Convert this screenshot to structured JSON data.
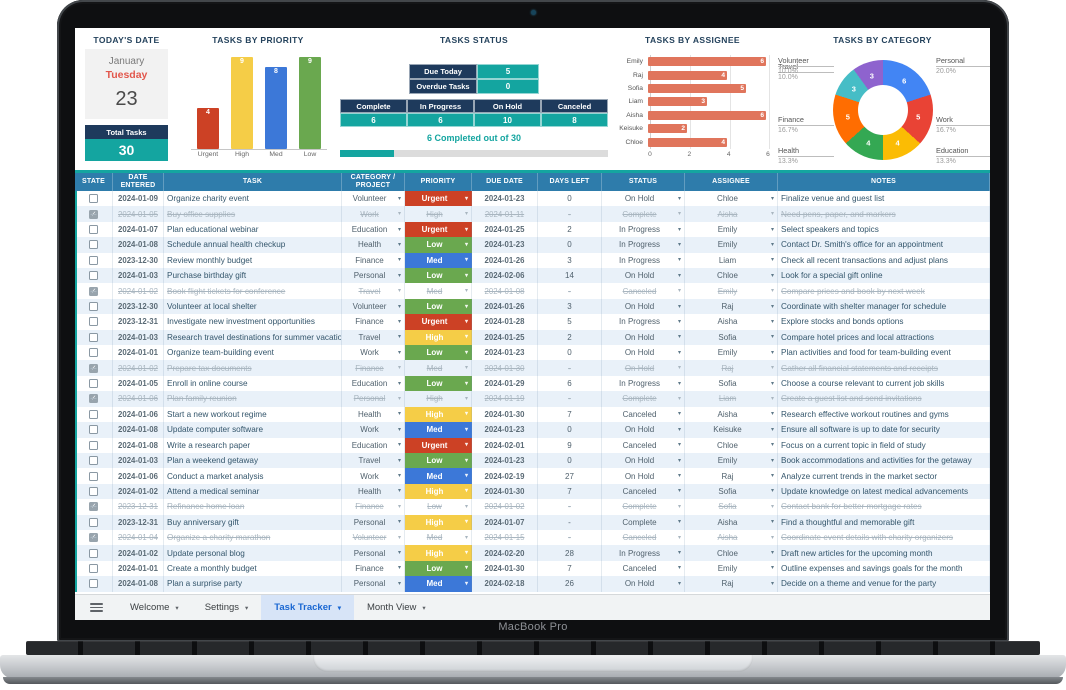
{
  "device": {
    "label": "MacBook Pro"
  },
  "dashboard": {
    "today": {
      "title": "TODAY'S DATE",
      "month": "January",
      "weekday": "Tuesday",
      "day": "23"
    },
    "total_tasks": {
      "label": "Total Tasks",
      "value": "30"
    },
    "status": {
      "title": "TASKS STATUS",
      "due_today": {
        "label": "Due Today",
        "value": "5"
      },
      "overdue": {
        "label": "Overdue Tasks",
        "value": "0"
      },
      "summary": [
        {
          "label": "Complete",
          "value": "6"
        },
        {
          "label": "In Progress",
          "value": "6"
        },
        {
          "label": "On Hold",
          "value": "10"
        },
        {
          "label": "Canceled",
          "value": "8"
        }
      ],
      "progress_text": "6 Completed out of 30",
      "progress_pct": 20
    }
  },
  "chart_data": [
    {
      "type": "bar",
      "title": "TASKS BY PRIORITY",
      "categories": [
        "Urgent",
        "High",
        "Med",
        "Low"
      ],
      "values": [
        4,
        9,
        8,
        9
      ],
      "colors": [
        "#cc4125",
        "#f5cd47",
        "#3c78d8",
        "#6aa84f"
      ],
      "xlabel": "",
      "ylabel": "",
      "ylim": [
        0,
        9
      ],
      "grid": false
    },
    {
      "type": "bar",
      "orientation": "horizontal",
      "title": "TASKS BY ASSIGNEE",
      "categories": [
        "Emily",
        "Raj",
        "Sofia",
        "Liam",
        "Aisha",
        "Keisuke",
        "Chloe"
      ],
      "values": [
        6,
        4,
        5,
        3,
        6,
        2,
        4
      ],
      "color": "#e0755c",
      "xticks": [
        0,
        2,
        4,
        6
      ],
      "xlim": [
        0,
        6
      ],
      "grid": true
    },
    {
      "type": "pie",
      "donut": true,
      "title": "TASKS BY CATEGORY",
      "labels": [
        "Personal",
        "Work",
        "Education",
        "Health",
        "Finance",
        "Travel",
        "Volunteer"
      ],
      "values": [
        6,
        5,
        4,
        4,
        5,
        3,
        3
      ],
      "percents": [
        "20.0%",
        "16.7%",
        "13.3%",
        "13.3%",
        "16.7%",
        "10.0%",
        "10.0%"
      ],
      "colors": [
        "#4285f4",
        "#e94335",
        "#fbbc04",
        "#34a853",
        "#ff6d01",
        "#46bdc6",
        "#8e63ce"
      ],
      "sides": [
        "right",
        "right",
        "right",
        "left",
        "left",
        "left",
        "left"
      ],
      "legend_position": "outside-callouts"
    }
  ],
  "table": {
    "columns": [
      "STATE",
      "DATE ENTERED",
      "TASK",
      "CATEGORY / PROJECT",
      "PRIORITY",
      "DUE DATE",
      "DAYS LEFT",
      "STATUS",
      "ASSIGNEE",
      "NOTES"
    ],
    "rows": [
      {
        "checked": false,
        "done": false,
        "date": "2024-01-09",
        "task": "Organize charity event",
        "category": "Volunteer",
        "priority": "Urgent",
        "due": "2024-01-23",
        "days": "0",
        "status": "On Hold",
        "assignee": "Chloe",
        "notes": "Finalize venue and guest list"
      },
      {
        "checked": true,
        "done": true,
        "date": "2024-01-05",
        "task": "Buy office supplies",
        "category": "Work",
        "priority": "High",
        "due": "2024-01-11",
        "days": "-",
        "status": "Complete",
        "assignee": "Aisha",
        "notes": "Need pens, paper, and markers"
      },
      {
        "checked": false,
        "done": false,
        "date": "2024-01-07",
        "task": "Plan educational webinar",
        "category": "Education",
        "priority": "Urgent",
        "due": "2024-01-25",
        "days": "2",
        "status": "In Progress",
        "assignee": "Emily",
        "notes": "Select speakers and topics"
      },
      {
        "checked": false,
        "done": false,
        "date": "2024-01-08",
        "task": "Schedule annual health checkup",
        "category": "Health",
        "priority": "Low",
        "due": "2024-01-23",
        "days": "0",
        "status": "In Progress",
        "assignee": "Emily",
        "notes": "Contact Dr. Smith's office for an appointment"
      },
      {
        "checked": false,
        "done": false,
        "date": "2023-12-30",
        "task": "Review monthly budget",
        "category": "Finance",
        "priority": "Med",
        "due": "2024-01-26",
        "days": "3",
        "status": "In Progress",
        "assignee": "Liam",
        "notes": "Check all recent transactions and adjust plans"
      },
      {
        "checked": false,
        "done": false,
        "date": "2024-01-03",
        "task": "Purchase birthday gift",
        "category": "Personal",
        "priority": "Low",
        "due": "2024-02-06",
        "days": "14",
        "status": "On Hold",
        "assignee": "Chloe",
        "notes": "Look for a special gift online"
      },
      {
        "checked": true,
        "done": true,
        "date": "2024-01-02",
        "task": "Book flight tickets for conference",
        "category": "Travel",
        "priority": "Med",
        "due": "2024-01-08",
        "days": "-",
        "status": "Canceled",
        "assignee": "Emily",
        "notes": "Compare prices and book by next week"
      },
      {
        "checked": false,
        "done": false,
        "date": "2023-12-30",
        "task": "Volunteer at local shelter",
        "category": "Volunteer",
        "priority": "Low",
        "due": "2024-01-26",
        "days": "3",
        "status": "On Hold",
        "assignee": "Raj",
        "notes": "Coordinate with shelter manager for schedule"
      },
      {
        "checked": false,
        "done": false,
        "date": "2023-12-31",
        "task": "Investigate new investment opportunities",
        "category": "Finance",
        "priority": "Urgent",
        "due": "2024-01-28",
        "days": "5",
        "status": "In Progress",
        "assignee": "Aisha",
        "notes": "Explore stocks and bonds options"
      },
      {
        "checked": false,
        "done": false,
        "date": "2024-01-03",
        "task": "Research travel destinations for summer vacation",
        "category": "Travel",
        "priority": "High",
        "due": "2024-01-25",
        "days": "2",
        "status": "On Hold",
        "assignee": "Sofia",
        "notes": "Compare hotel prices and local attractions"
      },
      {
        "checked": false,
        "done": false,
        "date": "2024-01-01",
        "task": "Organize team-building event",
        "category": "Work",
        "priority": "Low",
        "due": "2024-01-23",
        "days": "0",
        "status": "On Hold",
        "assignee": "Emily",
        "notes": "Plan activities and food for team-building event"
      },
      {
        "checked": true,
        "done": true,
        "date": "2024-01-02",
        "task": "Prepare tax documents",
        "category": "Finance",
        "priority": "Med",
        "due": "2024-01-30",
        "days": "-",
        "status": "On Hold",
        "assignee": "Raj",
        "notes": "Gather all financial statements and receipts"
      },
      {
        "checked": false,
        "done": false,
        "date": "2024-01-05",
        "task": "Enroll in online course",
        "category": "Education",
        "priority": "Low",
        "due": "2024-01-29",
        "days": "6",
        "status": "In Progress",
        "assignee": "Sofia",
        "notes": "Choose a course relevant to current job skills"
      },
      {
        "checked": true,
        "done": true,
        "date": "2024-01-06",
        "task": "Plan family reunion",
        "category": "Personal",
        "priority": "High",
        "due": "2024-01-19",
        "days": "-",
        "status": "Complete",
        "assignee": "Liam",
        "notes": "Create a guest list and send invitations"
      },
      {
        "checked": false,
        "done": false,
        "date": "2024-01-06",
        "task": "Start a new workout regime",
        "category": "Health",
        "priority": "High",
        "due": "2024-01-30",
        "days": "7",
        "status": "Canceled",
        "assignee": "Aisha",
        "notes": "Research effective workout routines and gyms"
      },
      {
        "checked": false,
        "done": false,
        "date": "2024-01-08",
        "task": "Update computer software",
        "category": "Work",
        "priority": "Med",
        "due": "2024-01-23",
        "days": "0",
        "status": "On Hold",
        "assignee": "Keisuke",
        "notes": "Ensure all software is up to date for security"
      },
      {
        "checked": false,
        "done": false,
        "date": "2024-01-08",
        "task": "Write a research paper",
        "category": "Education",
        "priority": "Urgent",
        "due": "2024-02-01",
        "days": "9",
        "status": "Canceled",
        "assignee": "Chloe",
        "notes": "Focus on a current topic in field of study"
      },
      {
        "checked": false,
        "done": false,
        "date": "2024-01-03",
        "task": "Plan a weekend getaway",
        "category": "Travel",
        "priority": "Low",
        "due": "2024-01-23",
        "days": "0",
        "status": "On Hold",
        "assignee": "Emily",
        "notes": "Book accommodations and activities for the getaway"
      },
      {
        "checked": false,
        "done": false,
        "date": "2024-01-06",
        "task": "Conduct a market analysis",
        "category": "Work",
        "priority": "Med",
        "due": "2024-02-19",
        "days": "27",
        "status": "On Hold",
        "assignee": "Raj",
        "notes": "Analyze current trends in the market sector"
      },
      {
        "checked": false,
        "done": false,
        "date": "2024-01-02",
        "task": "Attend a medical seminar",
        "category": "Health",
        "priority": "High",
        "due": "2024-01-30",
        "days": "7",
        "status": "Canceled",
        "assignee": "Sofia",
        "notes": "Update knowledge on latest medical advancements"
      },
      {
        "checked": true,
        "done": true,
        "date": "2023-12-31",
        "task": "Refinance home loan",
        "category": "Finance",
        "priority": "Low",
        "due": "2024-01-02",
        "days": "-",
        "status": "Complete",
        "assignee": "Sofia",
        "notes": "Contact bank for better mortgage rates"
      },
      {
        "checked": false,
        "done": false,
        "date": "2023-12-31",
        "task": "Buy anniversary gift",
        "category": "Personal",
        "priority": "High",
        "due": "2024-01-07",
        "days": "-",
        "status": "Complete",
        "assignee": "Aisha",
        "notes": "Find a thoughtful and memorable gift"
      },
      {
        "checked": true,
        "done": true,
        "date": "2024-01-04",
        "task": "Organize a charity marathon",
        "category": "Volunteer",
        "priority": "Med",
        "due": "2024-01-15",
        "days": "-",
        "status": "Canceled",
        "assignee": "Aisha",
        "notes": "Coordinate event details with charity organizers"
      },
      {
        "checked": false,
        "done": false,
        "date": "2024-01-02",
        "task": "Update personal blog",
        "category": "Personal",
        "priority": "High",
        "due": "2024-02-20",
        "days": "28",
        "status": "In Progress",
        "assignee": "Chloe",
        "notes": "Draft new articles for the upcoming month"
      },
      {
        "checked": false,
        "done": false,
        "date": "2024-01-01",
        "task": "Create a monthly budget",
        "category": "Finance",
        "priority": "Low",
        "due": "2024-01-30",
        "days": "7",
        "status": "Canceled",
        "assignee": "Emily",
        "notes": "Outline expenses and savings goals for the month"
      },
      {
        "checked": false,
        "done": false,
        "date": "2024-01-08",
        "task": "Plan a surprise party",
        "category": "Personal",
        "priority": "Med",
        "due": "2024-02-18",
        "days": "26",
        "status": "On Hold",
        "assignee": "Raj",
        "notes": "Decide on a theme and venue for the party"
      }
    ]
  },
  "tabs": {
    "menu_icon": "hamburger-icon",
    "items": [
      {
        "label": "Welcome",
        "active": false
      },
      {
        "label": "Settings",
        "active": false
      },
      {
        "label": "Task Tracker",
        "active": true
      },
      {
        "label": "Month View",
        "active": false
      }
    ]
  },
  "colors": {
    "accent_teal": "#14a5a0",
    "navy": "#1e3a5c",
    "table_header_blue": "#2e7cab",
    "tab_active_blue": "#1a67d2",
    "assignee_bar": "#e0755c",
    "priority": {
      "Urgent": "#cc4125",
      "High": "#f5cd47",
      "Med": "#3c78d8",
      "Low": "#6aa84f"
    }
  }
}
